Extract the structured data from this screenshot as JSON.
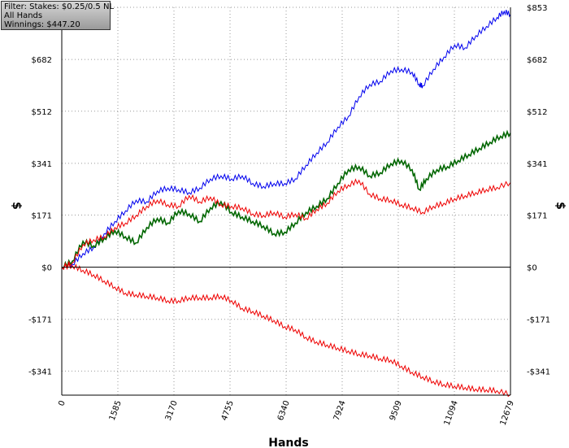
{
  "filter_box": {
    "line1": "Filter: Stakes: $0.25/0.5 NL",
    "line2": "All Hands",
    "line3": "Winnings: $447.20"
  },
  "chart_data": {
    "type": "line",
    "title": "",
    "xlabel": "Hands",
    "ylabel": "$",
    "xlim": [
      0,
      12679
    ],
    "ylim": [
      -420,
      853
    ],
    "x_ticks": [
      0,
      1585,
      3170,
      4755,
      6340,
      7924,
      9509,
      11094,
      12679
    ],
    "y_ticks": [
      {
        "value": 853,
        "label": "$853"
      },
      {
        "value": 682,
        "label": "$682"
      },
      {
        "value": 512,
        "label": "$512"
      },
      {
        "value": 341,
        "label": "$341"
      },
      {
        "value": 171,
        "label": "$171"
      },
      {
        "value": 0,
        "label": "$0"
      },
      {
        "value": -171,
        "label": "-$171"
      },
      {
        "value": -341,
        "label": "-$341"
      }
    ],
    "grid": true,
    "series": [
      {
        "color": "#0000ee",
        "x": [
          0,
          300,
          600,
          900,
          1200,
          1500,
          1800,
          2100,
          2400,
          2700,
          3000,
          3300,
          3600,
          3900,
          4200,
          4500,
          4800,
          5100,
          5400,
          5700,
          6000,
          6300,
          6600,
          6900,
          7200,
          7500,
          7800,
          8100,
          8400,
          8700,
          9000,
          9300,
          9600,
          9900,
          10100,
          10200,
          10500,
          10800,
          11100,
          11400,
          11700,
          12000,
          12300,
          12500,
          12679
        ],
        "values": [
          0,
          10,
          45,
          65,
          110,
          150,
          185,
          220,
          215,
          250,
          260,
          255,
          245,
          260,
          290,
          300,
          290,
          300,
          275,
          265,
          275,
          275,
          290,
          335,
          375,
          410,
          460,
          495,
          560,
          600,
          610,
          645,
          650,
          640,
          600,
          595,
          650,
          690,
          730,
          720,
          760,
          790,
          820,
          840,
          830
        ]
      },
      {
        "color": "#006600",
        "x": [
          0,
          300,
          600,
          900,
          1200,
          1500,
          1800,
          2100,
          2400,
          2700,
          3000,
          3300,
          3600,
          3900,
          4200,
          4500,
          4800,
          5100,
          5400,
          5700,
          6000,
          6300,
          6600,
          6900,
          7200,
          7500,
          7800,
          8100,
          8400,
          8700,
          9000,
          9300,
          9600,
          9900,
          10100,
          10300,
          10600,
          10900,
          11200,
          11500,
          11800,
          12100,
          12400,
          12679
        ],
        "values": [
          0,
          20,
          85,
          70,
          95,
          120,
          100,
          80,
          130,
          160,
          145,
          185,
          175,
          150,
          195,
          215,
          180,
          165,
          150,
          135,
          110,
          115,
          145,
          180,
          200,
          225,
          275,
          320,
          330,
          300,
          310,
          340,
          350,
          320,
          255,
          290,
          320,
          330,
          350,
          370,
          390,
          410,
          430,
          440
        ]
      },
      {
        "color": "#ee0000",
        "x": [
          0,
          300,
          600,
          900,
          1200,
          1500,
          1800,
          2100,
          2400,
          2700,
          3000,
          3300,
          3600,
          3900,
          4200,
          4500,
          4800,
          5100,
          5400,
          5700,
          6000,
          6300,
          6600,
          6900,
          7200,
          7500,
          7800,
          8100,
          8400,
          8700,
          9000,
          9300,
          9600,
          9900,
          10200,
          10500,
          10800,
          11100,
          11400,
          11700,
          12000,
          12300,
          12679
        ],
        "values": [
          0,
          15,
          75,
          90,
          100,
          130,
          145,
          170,
          200,
          220,
          205,
          200,
          235,
          215,
          230,
          205,
          200,
          195,
          175,
          170,
          180,
          165,
          175,
          160,
          190,
          210,
          250,
          270,
          285,
          240,
          225,
          220,
          205,
          195,
          180,
          200,
          210,
          225,
          235,
          245,
          255,
          262,
          278
        ]
      },
      {
        "color": "#ee0000",
        "x": [
          0,
          300,
          600,
          900,
          1200,
          1500,
          1800,
          2100,
          2400,
          2700,
          3000,
          3300,
          3600,
          3900,
          4200,
          4500,
          4800,
          5100,
          5400,
          5700,
          6000,
          6300,
          6600,
          6900,
          7200,
          7500,
          7800,
          8100,
          8400,
          8700,
          9000,
          9300,
          9600,
          9900,
          10200,
          10500,
          10800,
          11100,
          11400,
          11700,
          12000,
          12300,
          12679
        ],
        "values": [
          0,
          5,
          -10,
          -25,
          -45,
          -65,
          -85,
          -90,
          -95,
          -100,
          -110,
          -110,
          -100,
          -100,
          -100,
          -95,
          -110,
          -135,
          -145,
          -160,
          -175,
          -195,
          -205,
          -230,
          -245,
          -255,
          -265,
          -275,
          -285,
          -290,
          -300,
          -305,
          -325,
          -345,
          -360,
          -375,
          -385,
          -390,
          -395,
          -400,
          -402,
          -405,
          -418
        ]
      }
    ]
  }
}
